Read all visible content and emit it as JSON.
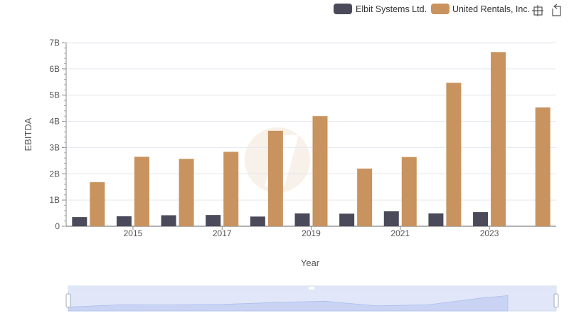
{
  "legend": {
    "items": [
      {
        "label": "Elbit Systems Ltd.",
        "color": "#4a4a5a"
      },
      {
        "label": "United Rentals, Inc.",
        "color": "#c8935e"
      }
    ]
  },
  "toolbar": {
    "icons": [
      "crosshair-zoom-icon",
      "zoom-reset-icon"
    ]
  },
  "chart_data": {
    "type": "bar",
    "x": [
      2014,
      2015,
      2016,
      2017,
      2018,
      2019,
      2020,
      2021,
      2022,
      2023,
      2024
    ],
    "xticks": [
      2015,
      2017,
      2019,
      2021,
      2023
    ],
    "xlabel": "Year",
    "ylabel": "EBITDA",
    "ylim": [
      0,
      7000000000
    ],
    "yticks": [
      {
        "value": 0,
        "label": "0"
      },
      {
        "value": 1000000000,
        "label": "1B"
      },
      {
        "value": 2000000000,
        "label": "2B"
      },
      {
        "value": 3000000000,
        "label": "3B"
      },
      {
        "value": 4000000000,
        "label": "4B"
      },
      {
        "value": 5000000000,
        "label": "5B"
      },
      {
        "value": 6000000000,
        "label": "6B"
      },
      {
        "value": 7000000000,
        "label": "7B"
      }
    ],
    "grid": true,
    "legend_position": "top-right",
    "series": [
      {
        "name": "Elbit Systems Ltd.",
        "color": "#4a4a5a",
        "values": [
          350000000,
          380000000,
          420000000,
          430000000,
          370000000,
          490000000,
          480000000,
          570000000,
          490000000,
          540000000,
          null
        ]
      },
      {
        "name": "United Rentals, Inc.",
        "color": "#c8935e",
        "values": [
          1680000000,
          2650000000,
          2570000000,
          2840000000,
          3640000000,
          4200000000,
          2200000000,
          2640000000,
          5470000000,
          6640000000,
          4530000000
        ]
      }
    ]
  },
  "zoom_slider": {
    "range": [
      0,
      1
    ]
  }
}
